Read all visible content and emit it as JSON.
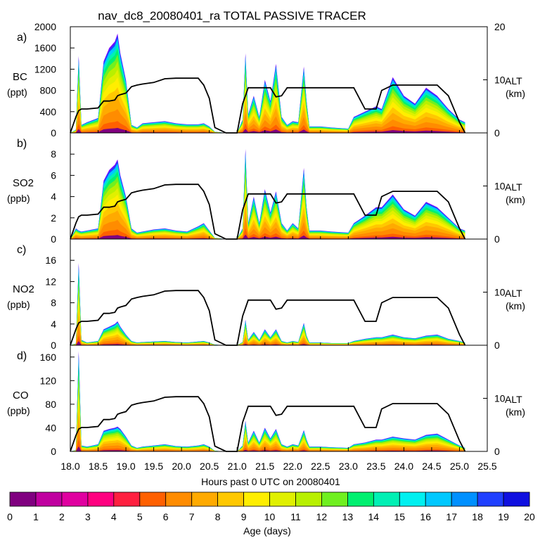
{
  "title": "nav_dc8_20080401_ra TOTAL PASSIVE TRACER",
  "xlabel": "Hours past 0 UTC on 20080401",
  "colorbar_label": "Age (days)",
  "colorbar_ticks": [
    "0",
    "1",
    "2",
    "3",
    "4",
    "5",
    "6",
    "7",
    "8",
    "9",
    "10",
    "11",
    "12",
    "13",
    "14",
    "15",
    "16",
    "17",
    "18",
    "19",
    "20"
  ],
  "colors": [
    "#800080",
    "#c000a0",
    "#e000a0",
    "#ff0080",
    "#ff2040",
    "#ff6000",
    "#ff8c00",
    "#ffaa00",
    "#ffc800",
    "#ffee00",
    "#e0f000",
    "#b8f000",
    "#70f020",
    "#00f070",
    "#00f0b4",
    "#00f0f0",
    "#00c8ff",
    "#0090ff",
    "#2040ff",
    "#1010e0",
    "#8000ff"
  ],
  "chart_data": [
    {
      "panel": "a)",
      "type": "area",
      "ylabel": "BC",
      "yunits": "(ppt)",
      "ylim": [
        0,
        2000
      ],
      "yticks": [
        "0",
        "400",
        "800",
        "1200",
        "1600",
        "2000"
      ],
      "right_axis": {
        "label": "ALT",
        "units": "(km)",
        "ylim": [
          0,
          20
        ],
        "ticks": [
          "0",
          "10",
          "20"
        ]
      },
      "xlim": [
        18.0,
        25.5
      ],
      "x": [
        18.0,
        18.1,
        18.15,
        18.2,
        18.3,
        18.5,
        18.6,
        18.7,
        18.8,
        18.85,
        18.9,
        19.0,
        19.1,
        19.2,
        19.3,
        19.5,
        19.7,
        19.9,
        20.1,
        20.3,
        20.4,
        20.5,
        20.6,
        20.8,
        21.0,
        21.1,
        21.15,
        21.2,
        21.3,
        21.4,
        21.5,
        21.6,
        21.7,
        21.8,
        21.9,
        22.0,
        22.1,
        22.2,
        22.25,
        22.3,
        22.5,
        22.7,
        23.0,
        23.1,
        23.3,
        23.5,
        23.6,
        23.8,
        24.0,
        24.2,
        24.4,
        24.6,
        24.8,
        25.0,
        25.1
      ],
      "series": [
        {
          "name": "total tracer",
          "values": [
            0,
            60,
            1450,
            150,
            200,
            280,
            1350,
            1600,
            1720,
            1870,
            1500,
            1000,
            150,
            100,
            180,
            200,
            220,
            180,
            160,
            160,
            180,
            120,
            20,
            0,
            0,
            250,
            1500,
            350,
            700,
            300,
            1000,
            600,
            1300,
            300,
            150,
            220,
            200,
            1250,
            600,
            120,
            120,
            100,
            80,
            300,
            400,
            500,
            450,
            1050,
            700,
            550,
            850,
            700,
            450,
            250,
            200
          ]
        }
      ],
      "altitude_km": [
        0,
        3,
        4.2,
        4.5,
        4.5,
        4.7,
        6,
        6,
        6.2,
        7,
        7.2,
        7.5,
        8.7,
        9,
        9.2,
        9.5,
        10.2,
        10.3,
        10.3,
        10.3,
        9,
        6.5,
        1,
        0,
        0,
        5.5,
        7,
        8.5,
        8.5,
        8.5,
        8.5,
        8.5,
        6.8,
        7,
        8.5,
        8.5,
        8.5,
        8.5,
        8.5,
        8.5,
        8.5,
        8.5,
        8.5,
        8.5,
        4.5,
        4.5,
        8,
        9,
        9,
        9,
        9,
        9,
        7,
        2,
        0
      ]
    },
    {
      "panel": "b)",
      "type": "area",
      "ylabel": "SO2",
      "yunits": "(ppb)",
      "ylim": [
        0,
        10
      ],
      "yticks": [
        "0",
        "2",
        "4",
        "6",
        "8"
      ],
      "right_axis": {
        "label": "ALT",
        "units": "(km)",
        "ylim": [
          0,
          20
        ],
        "ticks": [
          "0",
          "10",
          "20"
        ]
      },
      "xlim": [
        18.0,
        25.5
      ],
      "x": [
        18.0,
        18.1,
        18.15,
        18.2,
        18.3,
        18.5,
        18.6,
        18.7,
        18.8,
        18.85,
        18.9,
        19.0,
        19.1,
        19.2,
        19.3,
        19.5,
        19.7,
        19.9,
        20.1,
        20.3,
        20.4,
        20.5,
        20.6,
        20.8,
        21.0,
        21.1,
        21.15,
        21.2,
        21.3,
        21.4,
        21.5,
        21.6,
        21.7,
        21.8,
        21.9,
        22.0,
        22.1,
        22.2,
        22.25,
        22.3,
        22.5,
        22.7,
        23.0,
        23.1,
        23.3,
        23.5,
        23.6,
        23.8,
        24.0,
        24.2,
        24.4,
        24.6,
        24.8,
        25.0,
        25.1
      ],
      "series": [
        {
          "name": "total tracer",
          "values": [
            0,
            1,
            0.8,
            0.7,
            0.8,
            1,
            5.5,
            6.5,
            7,
            7.5,
            6,
            4,
            1,
            0.6,
            0.7,
            0.9,
            1,
            0.8,
            0.7,
            1.2,
            1.5,
            0.8,
            0.1,
            0,
            0,
            1,
            8.5,
            1.5,
            4,
            1.5,
            4.7,
            2.5,
            4.5,
            1.5,
            0.8,
            1.5,
            1,
            6.7,
            3,
            0.8,
            0.8,
            0.7,
            0.6,
            1.5,
            2.2,
            3,
            3,
            4.2,
            2.8,
            2.2,
            3.5,
            3,
            2,
            1,
            0.8
          ]
        }
      ],
      "altitude_km": [
        0,
        3,
        4.2,
        4.5,
        4.5,
        4.7,
        6,
        6,
        6.2,
        7,
        7.2,
        7.5,
        8.7,
        9,
        9.2,
        9.5,
        10.2,
        10.3,
        10.3,
        10.3,
        9,
        6.5,
        1,
        0,
        0,
        5.5,
        7,
        8.5,
        8.5,
        8.5,
        8.5,
        8.5,
        6.8,
        7,
        8.5,
        8.5,
        8.5,
        8.5,
        8.5,
        8.5,
        8.5,
        8.5,
        8.5,
        8.5,
        4.5,
        4.5,
        8,
        9,
        9,
        9,
        9,
        9,
        7,
        2,
        0
      ]
    },
    {
      "panel": "c)",
      "type": "area",
      "ylabel": "NO2",
      "yunits": "(ppb)",
      "ylim": [
        0,
        20
      ],
      "yticks": [
        "0",
        "4",
        "8",
        "12",
        "16"
      ],
      "right_axis": {
        "label": "ALT",
        "units": "(km)",
        "ylim": [
          0,
          20
        ],
        "ticks": [
          "0",
          "10",
          "20"
        ]
      },
      "xlim": [
        18.0,
        25.5
      ],
      "x": [
        18.0,
        18.1,
        18.15,
        18.2,
        18.3,
        18.5,
        18.6,
        18.7,
        18.8,
        18.85,
        18.9,
        19.0,
        19.1,
        19.2,
        19.3,
        19.5,
        19.7,
        19.9,
        20.1,
        20.3,
        20.4,
        20.5,
        20.6,
        20.8,
        21.0,
        21.1,
        21.15,
        21.2,
        21.3,
        21.4,
        21.5,
        21.6,
        21.7,
        21.8,
        21.9,
        22.0,
        22.1,
        22.2,
        22.25,
        22.3,
        22.5,
        22.7,
        23.0,
        23.1,
        23.3,
        23.5,
        23.6,
        23.8,
        24.0,
        24.2,
        24.4,
        24.6,
        24.8,
        25.0,
        25.1
      ],
      "series": [
        {
          "name": "total tracer",
          "values": [
            0,
            0.3,
            15.5,
            1,
            0.5,
            0.8,
            3,
            3.5,
            4,
            4.5,
            3.5,
            2,
            0.8,
            0.5,
            0.6,
            0.7,
            0.8,
            0.6,
            0.5,
            0.7,
            0.8,
            0.5,
            0.1,
            0,
            0,
            0.6,
            4.8,
            1,
            2.5,
            1,
            3,
            1.5,
            3,
            0.8,
            0.5,
            0.8,
            0.6,
            4.2,
            1.8,
            0.5,
            0.5,
            0.4,
            0.4,
            0.8,
            1.2,
            1.5,
            1.5,
            2,
            1.5,
            1.3,
            1.8,
            2,
            1.2,
            0.8,
            0.5
          ]
        }
      ],
      "altitude_km": [
        0,
        3,
        4.2,
        4.5,
        4.5,
        4.7,
        6,
        6,
        6.2,
        7,
        7.2,
        7.5,
        8.7,
        9,
        9.2,
        9.5,
        10.2,
        10.3,
        10.3,
        10.3,
        9,
        6.5,
        1,
        0,
        0,
        5.5,
        7,
        8.5,
        8.5,
        8.5,
        8.5,
        8.5,
        6.8,
        7,
        8.5,
        8.5,
        8.5,
        8.5,
        8.5,
        8.5,
        8.5,
        8.5,
        8.5,
        8.5,
        4.5,
        4.5,
        8,
        9,
        9,
        9,
        9,
        9,
        7,
        2,
        0
      ]
    },
    {
      "panel": "d)",
      "type": "area",
      "ylabel": "CO",
      "yunits": "(ppb)",
      "ylim": [
        0,
        180
      ],
      "yticks": [
        "0",
        "40",
        "80",
        "120",
        "160"
      ],
      "right_axis": {
        "label": "ALT",
        "units": "(km)",
        "ylim": [
          0,
          20
        ],
        "ticks": [
          "0",
          "10",
          "20"
        ]
      },
      "xlim": [
        18.0,
        25.5
      ],
      "x": [
        18.0,
        18.1,
        18.15,
        18.2,
        18.3,
        18.5,
        18.6,
        18.7,
        18.8,
        18.85,
        18.9,
        19.0,
        19.1,
        19.2,
        19.3,
        19.5,
        19.7,
        19.9,
        20.1,
        20.3,
        20.4,
        20.5,
        20.6,
        20.8,
        21.0,
        21.1,
        21.15,
        21.2,
        21.3,
        21.4,
        21.5,
        21.6,
        21.7,
        21.8,
        21.9,
        22.0,
        22.1,
        22.2,
        22.25,
        22.3,
        22.5,
        22.7,
        23.0,
        23.1,
        23.3,
        23.5,
        23.6,
        23.8,
        24.0,
        24.2,
        24.4,
        24.6,
        24.8,
        25.0,
        25.1
      ],
      "series": [
        {
          "name": "total tracer",
          "values": [
            0,
            2,
            170,
            10,
            8,
            12,
            35,
            38,
            40,
            42,
            38,
            25,
            10,
            6,
            8,
            10,
            12,
            9,
            8,
            10,
            12,
            8,
            1,
            0,
            0,
            10,
            52,
            15,
            35,
            15,
            40,
            22,
            38,
            12,
            8,
            12,
            10,
            36,
            20,
            8,
            8,
            7,
            6,
            12,
            15,
            20,
            20,
            25,
            22,
            20,
            28,
            30,
            20,
            10,
            6
          ]
        }
      ],
      "altitude_km": [
        0,
        3,
        4.2,
        4.5,
        4.5,
        4.7,
        6,
        6,
        6.2,
        7,
        7.2,
        7.5,
        8.7,
        9,
        9.2,
        9.5,
        10.2,
        10.3,
        10.3,
        10.3,
        9,
        6.5,
        1,
        0,
        0,
        5.5,
        7,
        8.5,
        8.5,
        8.5,
        8.5,
        8.5,
        6.8,
        7,
        8.5,
        8.5,
        8.5,
        8.5,
        8.5,
        8.5,
        8.5,
        8.5,
        8.5,
        8.5,
        4.5,
        4.5,
        8,
        9,
        9,
        9,
        9,
        9,
        7,
        2,
        0
      ]
    }
  ],
  "xticks": [
    "18.0",
    "18.5",
    "19.0",
    "19.5",
    "20.0",
    "20.5",
    "21.0",
    "21.5",
    "22.0",
    "22.5",
    "23.0",
    "23.5",
    "24.0",
    "24.5",
    "25.0",
    "25.5"
  ]
}
